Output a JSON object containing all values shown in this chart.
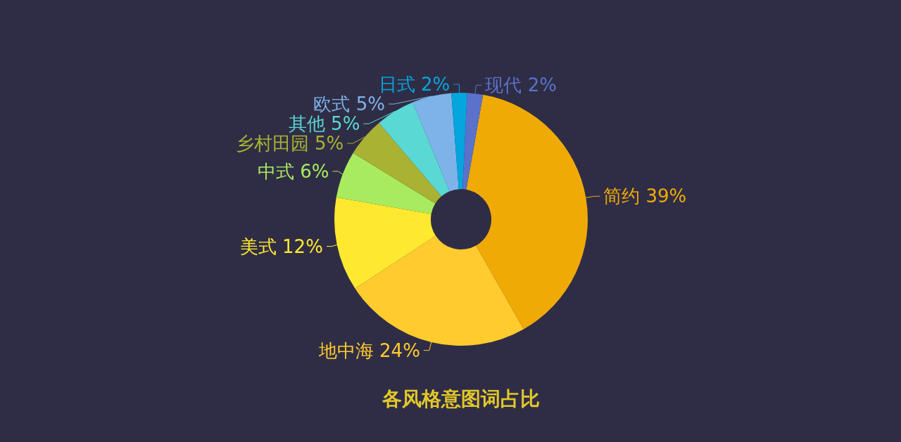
{
  "chart_data": {
    "type": "donut",
    "title": "各风格意图词占比",
    "categories": [
      "简约",
      "地中海",
      "美式",
      "中式",
      "乡村田园",
      "其他",
      "欧式",
      "日式",
      "现代"
    ],
    "values": [
      39,
      24,
      12,
      6,
      5,
      5,
      5,
      2,
      2
    ],
    "value_labels": [
      "39%",
      "24%",
      "12%",
      "6%",
      "5%",
      "5%",
      "5%",
      "2%",
      "2%"
    ],
    "colors": [
      "#f0aa05",
      "#ffcb2e",
      "#ffe930",
      "#a9eb5e",
      "#a9b233",
      "#5ad8d4",
      "#7eb3ea",
      "#05a5dd",
      "#5a72cc"
    ],
    "legend": false
  }
}
